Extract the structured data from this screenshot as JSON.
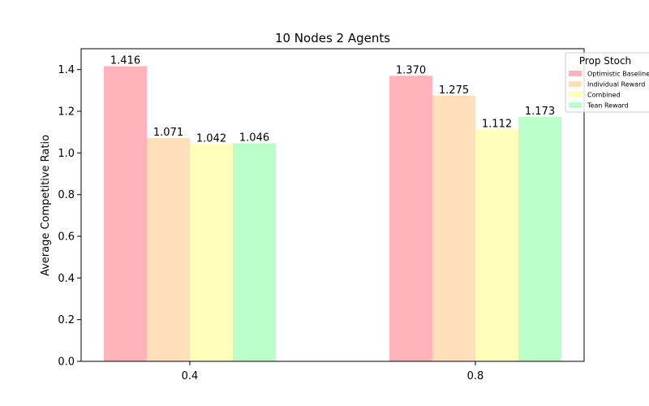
{
  "chart_data": {
    "type": "bar",
    "title": "10 Nodes 2 Agents",
    "xlabel": "",
    "ylabel": "Average Competitive Ratio",
    "categories": [
      "0.4",
      "0.8"
    ],
    "ylim": [
      0,
      1.5
    ],
    "yticks": [
      "0.0",
      "0.2",
      "0.4",
      "0.6",
      "0.8",
      "1.0",
      "1.2",
      "1.4"
    ],
    "grid": false,
    "legend": {
      "title": "Prop Stoch",
      "placement": "top-right"
    },
    "series": [
      {
        "name": "Optimistic Baseline",
        "color": "#ffb3ba",
        "values": [
          1.416,
          1.37
        ],
        "labels": [
          "1.416",
          "1.370"
        ]
      },
      {
        "name": "Individual Reward",
        "color": "#ffdfba",
        "values": [
          1.071,
          1.275
        ],
        "labels": [
          "1.071",
          "1.275"
        ]
      },
      {
        "name": "Combined",
        "color": "#ffffba",
        "values": [
          1.042,
          1.112
        ],
        "labels": [
          "1.042",
          "1.112"
        ]
      },
      {
        "name": "Tean Reward",
        "color": "#baffc9",
        "values": [
          1.046,
          1.173
        ],
        "labels": [
          "1.046",
          "1.173"
        ]
      }
    ]
  }
}
